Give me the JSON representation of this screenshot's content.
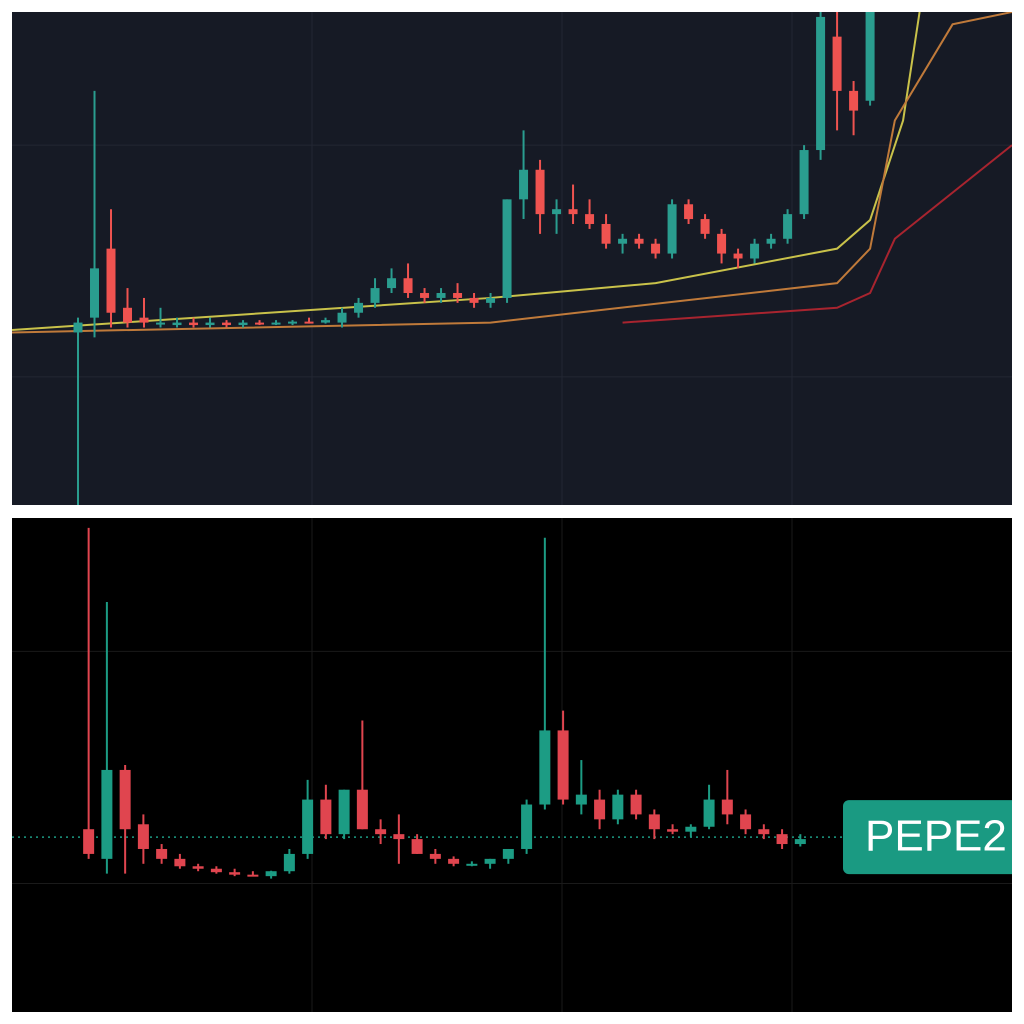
{
  "chart_data": [
    {
      "type": "candlestick",
      "background": "#161a25",
      "grid_color": "#232733",
      "up_color": "#2a9d8f",
      "down_color": "#ef5350",
      "xlim": [
        -4,
        56.6
      ],
      "ylim": [
        0,
        100
      ],
      "candles": [
        [
          35,
          38,
          0,
          37
        ],
        [
          38,
          84,
          34,
          48
        ],
        [
          52,
          60,
          36,
          39
        ],
        [
          40,
          44,
          36,
          37
        ],
        [
          38,
          42,
          36,
          37
        ],
        [
          37,
          40,
          36,
          37
        ],
        [
          36.5,
          38,
          36,
          37
        ],
        [
          37,
          38,
          36,
          36.5
        ],
        [
          36.5,
          38,
          36,
          37
        ],
        [
          37,
          37.5,
          36,
          36.5
        ],
        [
          36.5,
          37.5,
          36,
          37
        ],
        [
          37,
          37.5,
          36.5,
          36.8
        ],
        [
          36.8,
          37.5,
          36.5,
          37
        ],
        [
          37,
          37.5,
          36.5,
          37.2
        ],
        [
          37.2,
          38,
          36.8,
          37
        ],
        [
          37,
          38,
          36.8,
          37.5
        ],
        [
          37,
          40,
          36,
          39
        ],
        [
          39,
          42,
          38,
          41
        ],
        [
          41,
          46,
          40,
          44
        ],
        [
          44,
          48,
          43,
          46
        ],
        [
          46,
          49,
          42,
          43
        ],
        [
          43,
          44,
          41,
          42
        ],
        [
          42,
          44,
          41,
          43
        ],
        [
          43,
          45,
          41,
          42
        ],
        [
          42,
          43,
          40,
          41
        ],
        [
          41,
          43,
          40,
          42
        ],
        [
          42,
          62,
          41,
          62
        ],
        [
          62,
          76,
          58,
          68
        ],
        [
          68,
          70,
          55,
          59
        ],
        [
          59,
          62,
          55,
          60
        ],
        [
          60,
          65,
          57,
          59
        ],
        [
          59,
          62,
          56,
          57
        ],
        [
          57,
          59,
          52,
          53
        ],
        [
          53,
          55,
          51,
          54
        ],
        [
          54,
          55,
          52,
          53
        ],
        [
          53,
          54,
          50,
          51
        ],
        [
          51,
          62,
          50,
          61
        ],
        [
          61,
          62,
          57,
          58
        ],
        [
          58,
          59,
          54,
          55
        ],
        [
          55,
          56,
          49,
          51
        ],
        [
          51,
          52,
          48,
          50
        ],
        [
          50,
          54,
          49,
          53
        ],
        [
          53,
          55,
          52,
          54
        ],
        [
          54,
          60,
          53,
          59
        ],
        [
          59,
          73,
          58,
          72
        ],
        [
          72,
          100,
          70,
          99
        ],
        [
          95,
          100,
          76,
          84
        ],
        [
          84,
          86,
          75,
          80
        ],
        [
          82,
          100,
          81,
          100
        ]
      ],
      "series": [
        {
          "color": "#c9c24a",
          "x": [
            -4,
            25,
            35,
            46,
            48,
            50,
            51
          ],
          "values": [
            35.5,
            42,
            45,
            52,
            57.8,
            78,
            100
          ]
        },
        {
          "color": "#c07a3a",
          "x": [
            -4,
            25,
            46,
            48,
            49.5,
            53,
            56.6
          ],
          "values": [
            35,
            37,
            45,
            52,
            78,
            97.5,
            100
          ]
        },
        {
          "color": "#a8242f",
          "x": [
            33,
            46,
            48,
            49.5,
            56.6
          ],
          "values": [
            37,
            40,
            43,
            54,
            73
          ]
        }
      ]
    },
    {
      "type": "candlestick",
      "background": "#000000",
      "grid_color": "#1a1a1a",
      "up_color": "#1c9c84",
      "down_color": "#e0454f",
      "xlim": [
        -4.2,
        50.6
      ],
      "ylim": [
        0,
        100
      ],
      "candles": [
        [
          37,
          98,
          31,
          32
        ],
        [
          31,
          83,
          28,
          49
        ],
        [
          49,
          50,
          28,
          37
        ],
        [
          38,
          40,
          30,
          33
        ],
        [
          33,
          34,
          30,
          31
        ],
        [
          31,
          32,
          29,
          29.5
        ],
        [
          29.5,
          30,
          28.5,
          29
        ],
        [
          29,
          29.5,
          28,
          28.3
        ],
        [
          28.3,
          29,
          27.5,
          27.8
        ],
        [
          27.8,
          28.5,
          27.5,
          27.6
        ],
        [
          27.5,
          28.6,
          27,
          28.5
        ],
        [
          28.5,
          33,
          28,
          32
        ],
        [
          32,
          47,
          31,
          43
        ],
        [
          43,
          46,
          35,
          36
        ],
        [
          36,
          45,
          35,
          45
        ],
        [
          45,
          59,
          37,
          37
        ],
        [
          37,
          39,
          34,
          36
        ],
        [
          36,
          40,
          30,
          35
        ],
        [
          35,
          36,
          32,
          32
        ],
        [
          32,
          33,
          30,
          31
        ],
        [
          31,
          31.5,
          29.5,
          30
        ],
        [
          30,
          30.5,
          29.5,
          30
        ],
        [
          30,
          31,
          29,
          31
        ],
        [
          31,
          33,
          30,
          33
        ],
        [
          33,
          43,
          32,
          42
        ],
        [
          42,
          96,
          41,
          57
        ],
        [
          57,
          61,
          42,
          43
        ],
        [
          42,
          51,
          40,
          44
        ],
        [
          43,
          45,
          37,
          39
        ],
        [
          39,
          45,
          38,
          44
        ],
        [
          44,
          45,
          39,
          40
        ],
        [
          40,
          41,
          35,
          37
        ],
        [
          37,
          38,
          36,
          36.5
        ],
        [
          36.5,
          38,
          35.5,
          37.5
        ],
        [
          37.5,
          46,
          37,
          43
        ],
        [
          43,
          49,
          38,
          40
        ],
        [
          40,
          41,
          36,
          37
        ],
        [
          37,
          38,
          35,
          36
        ],
        [
          36,
          37,
          33,
          34
        ],
        [
          34,
          36,
          33.5,
          35
        ]
      ],
      "price_line": 35.4,
      "label": "PEPE2"
    }
  ]
}
